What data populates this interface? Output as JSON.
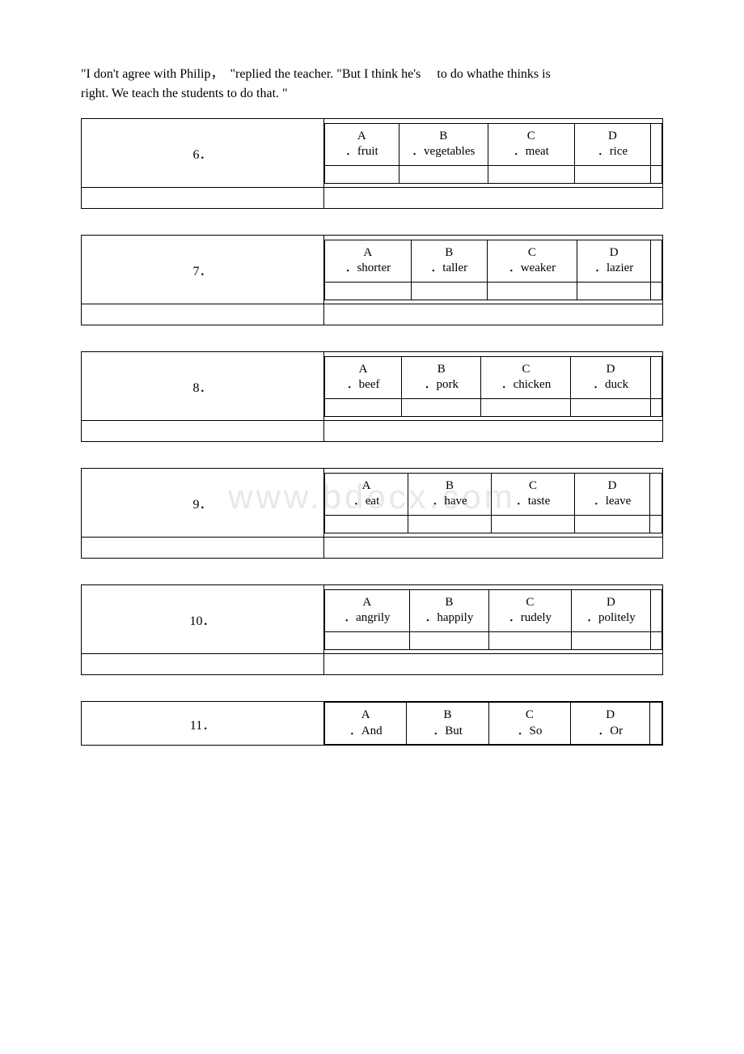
{
  "intro": {
    "line1": "\"I don't agree with Philip，  \"replied the teacher. \"But I think he's     to do whathe thinks is",
    "line2": "right. We teach the students to do that. \""
  },
  "watermark": "www.bdocx.com",
  "questions": [
    {
      "number": "6．",
      "options": [
        {
          "letter": "A",
          "text": "．fruit"
        },
        {
          "letter": "B",
          "text": "．vegetables"
        },
        {
          "letter": "C",
          "text": "．meat"
        },
        {
          "letter": "D",
          "text": "．rice"
        }
      ],
      "col_widths": [
        "60px",
        "70px",
        "70px",
        "62px"
      ],
      "tall": true,
      "narrow_last": true
    },
    {
      "number": "7．",
      "options": [
        {
          "letter": "A",
          "text": "．shorter"
        },
        {
          "letter": "B",
          "text": "．taller"
        },
        {
          "letter": "C",
          "text": "．weaker"
        },
        {
          "letter": "D",
          "text": "．lazier"
        }
      ],
      "col_widths": [
        "70px",
        "62px",
        "73px",
        "60px"
      ],
      "tall": true,
      "narrow_last": true
    },
    {
      "number": "8．",
      "options": [
        {
          "letter": "A",
          "text": "．beef"
        },
        {
          "letter": "B",
          "text": "．pork"
        },
        {
          "letter": "C",
          "text": "．chicken"
        },
        {
          "letter": "D",
          "text": "．duck"
        }
      ],
      "col_widths": [
        "60px",
        "62px",
        "70px",
        "62px"
      ],
      "tall": true,
      "narrow_last": true
    },
    {
      "number": "9．",
      "options": [
        {
          "letter": "A",
          "text": "．eat"
        },
        {
          "letter": "B",
          "text": "．have"
        },
        {
          "letter": "C",
          "text": "．taste"
        },
        {
          "letter": "D",
          "text": "．leave"
        }
      ],
      "col_widths": [
        "62px",
        "62px",
        "62px",
        "56px"
      ],
      "tall": true,
      "narrow_last": true
    },
    {
      "number": "10．",
      "options": [
        {
          "letter": "A",
          "text": "．angrily"
        },
        {
          "letter": "B",
          "text": "．happily"
        },
        {
          "letter": "C",
          "text": "．rudely"
        },
        {
          "letter": "D",
          "text": "．politely"
        }
      ],
      "col_widths": [
        "68px",
        "64px",
        "66px",
        "64px"
      ],
      "tall": true,
      "narrow_last": true
    },
    {
      "number": "11．",
      "options": [
        {
          "letter": "A",
          "text": "．And"
        },
        {
          "letter": "B",
          "text": "．But"
        },
        {
          "letter": "C",
          "text": "．So"
        },
        {
          "letter": "D",
          "text": "．Or"
        }
      ],
      "col_widths": [
        "62px",
        "62px",
        "62px",
        "60px"
      ],
      "tall": false,
      "narrow_last": true,
      "no_answer_row": true,
      "no_footer": true
    }
  ]
}
